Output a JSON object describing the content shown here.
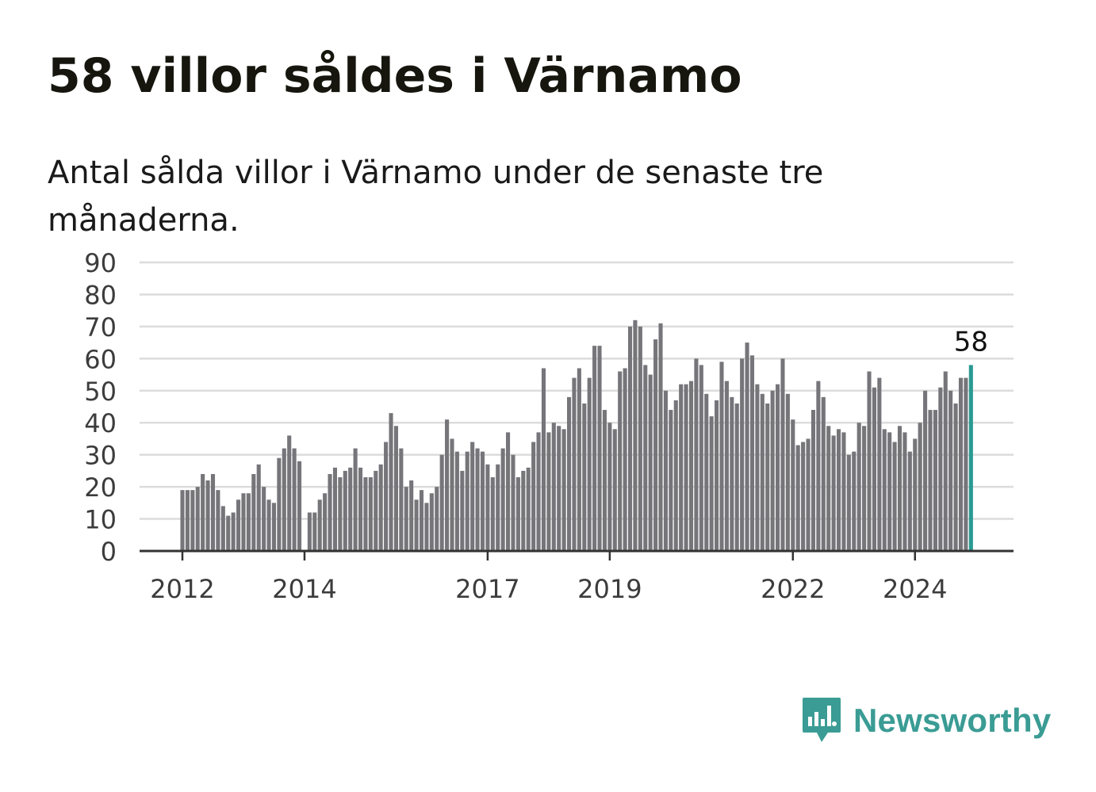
{
  "title": "58 villor såldes i Värnamo",
  "subtitle": "Antal sålda villor i Värnamo under de senaste tre månaderna.",
  "brand": {
    "name": "Newsworthy",
    "icon": "newsworthy-logo-icon",
    "color": "#3a9c94"
  },
  "chart_data": {
    "type": "bar",
    "title": "58 villor såldes i Värnamo",
    "subtitle": "Antal sålda villor i Värnamo under de senaste tre månaderna.",
    "xlabel": "",
    "ylabel": "",
    "ylim": [
      0,
      90
    ],
    "yticks": [
      0,
      10,
      20,
      30,
      40,
      50,
      60,
      70,
      80,
      90
    ],
    "xtick_labels": [
      "2012",
      "2014",
      "2017",
      "2019",
      "2022",
      "2024"
    ],
    "xtick_index": {
      "2012": 0,
      "2014": 24,
      "2017": 60,
      "2019": 84,
      "2022": 120,
      "2024": 144
    },
    "grid": true,
    "bar_color": "#76757a",
    "highlight_color": "#2a9a92",
    "highlight_label": "58",
    "categories": [
      "2012-01",
      "2012-02",
      "2012-03",
      "2012-04",
      "2012-05",
      "2012-06",
      "2012-07",
      "2012-08",
      "2012-09",
      "2012-10",
      "2012-11",
      "2012-12",
      "2013-01",
      "2013-02",
      "2013-03",
      "2013-04",
      "2013-05",
      "2013-06",
      "2013-07",
      "2013-08",
      "2013-09",
      "2013-10",
      "2013-11",
      "2013-12",
      "2014-01",
      "2014-02",
      "2014-03",
      "2014-04",
      "2014-05",
      "2014-06",
      "2014-07",
      "2014-08",
      "2014-09",
      "2014-10",
      "2014-11",
      "2014-12",
      "2015-01",
      "2015-02",
      "2015-03",
      "2015-04",
      "2015-05",
      "2015-06",
      "2015-07",
      "2015-08",
      "2015-09",
      "2015-10",
      "2015-11",
      "2015-12",
      "2016-01",
      "2016-02",
      "2016-03",
      "2016-04",
      "2016-05",
      "2016-06",
      "2016-07",
      "2016-08",
      "2016-09",
      "2016-10",
      "2016-11",
      "2016-12",
      "2017-01",
      "2017-02",
      "2017-03",
      "2017-04",
      "2017-05",
      "2017-06",
      "2017-07",
      "2017-08",
      "2017-09",
      "2017-10",
      "2017-11",
      "2017-12",
      "2018-01",
      "2018-02",
      "2018-03",
      "2018-04",
      "2018-05",
      "2018-06",
      "2018-07",
      "2018-08",
      "2018-09",
      "2018-10",
      "2018-11",
      "2018-12",
      "2019-01",
      "2019-02",
      "2019-03",
      "2019-04",
      "2019-05",
      "2019-06",
      "2019-07",
      "2019-08",
      "2019-09",
      "2019-10",
      "2019-11",
      "2019-12",
      "2020-01",
      "2020-02",
      "2020-03",
      "2020-04",
      "2020-05",
      "2020-06",
      "2020-07",
      "2020-08",
      "2020-09",
      "2020-10",
      "2020-11",
      "2020-12",
      "2021-01",
      "2021-02",
      "2021-03",
      "2021-04",
      "2021-05",
      "2021-06",
      "2021-07",
      "2021-08",
      "2021-09",
      "2021-10",
      "2021-11",
      "2021-12",
      "2022-01",
      "2022-02",
      "2022-03",
      "2022-04",
      "2022-05",
      "2022-06",
      "2022-07",
      "2022-08",
      "2022-09",
      "2022-10",
      "2022-11",
      "2022-12",
      "2023-01",
      "2023-02",
      "2023-03",
      "2023-04",
      "2023-05",
      "2023-06",
      "2023-07",
      "2023-08",
      "2023-09",
      "2023-10",
      "2023-11",
      "2023-12",
      "2024-01",
      "2024-02",
      "2024-03",
      "2024-04",
      "2024-05",
      "2024-06",
      "2024-07",
      "2024-08",
      "2024-09",
      "2024-10",
      "2024-11",
      "2024-12"
    ],
    "values": [
      19,
      19,
      19,
      20,
      24,
      22,
      24,
      19,
      14,
      11,
      12,
      16,
      18,
      18,
      24,
      27,
      20,
      16,
      15,
      29,
      32,
      36,
      32,
      28,
      0,
      12,
      12,
      16,
      18,
      24,
      26,
      23,
      25,
      26,
      32,
      26,
      23,
      23,
      25,
      27,
      34,
      43,
      39,
      32,
      20,
      22,
      16,
      19,
      15,
      18,
      20,
      30,
      41,
      35,
      31,
      25,
      31,
      34,
      32,
      31,
      27,
      23,
      27,
      32,
      37,
      30,
      23,
      25,
      26,
      34,
      37,
      57,
      37,
      40,
      39,
      38,
      48,
      54,
      57,
      46,
      54,
      64,
      64,
      44,
      40,
      38,
      56,
      57,
      70,
      72,
      70,
      58,
      55,
      66,
      71,
      50,
      44,
      47,
      52,
      52,
      53,
      60,
      58,
      49,
      42,
      47,
      59,
      53,
      48,
      46,
      60,
      65,
      61,
      52,
      49,
      46,
      50,
      52,
      60,
      49,
      41,
      33,
      34,
      35,
      44,
      53,
      48,
      39,
      36,
      38,
      37,
      30,
      31,
      40,
      39,
      56,
      51,
      54,
      38,
      37,
      34,
      39,
      37,
      31,
      35,
      40,
      50,
      44,
      44,
      51,
      56,
      50,
      46,
      54,
      54,
      58
    ]
  }
}
